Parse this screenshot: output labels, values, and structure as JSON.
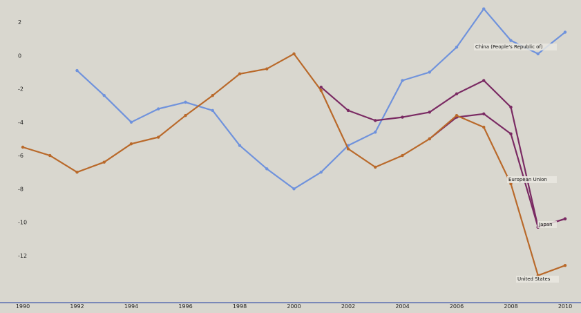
{
  "chart_data": {
    "type": "line",
    "xlim": [
      1990,
      2010
    ],
    "ylim": [
      -14,
      3
    ],
    "x_ticks": [
      1990,
      1992,
      1994,
      1996,
      1998,
      2000,
      2002,
      2004,
      2006,
      2008,
      2010
    ],
    "y_ticks": [
      2,
      0,
      -2,
      -4,
      -6,
      -8,
      -10,
      -12
    ],
    "grid": false,
    "legend": "inline-right",
    "series": [
      {
        "name": "China (People's Republic of)",
        "color": "#6f92dc",
        "points": [
          [
            1992,
            -0.9
          ],
          [
            1993,
            -2.4
          ],
          [
            1994,
            -4.0
          ],
          [
            1995,
            -3.2
          ],
          [
            1996,
            -2.8
          ],
          [
            1997,
            -3.3
          ],
          [
            1998,
            -5.4
          ],
          [
            1999,
            -6.8
          ],
          [
            2000,
            -8.0
          ],
          [
            2001,
            -7.0
          ],
          [
            2002,
            -5.4
          ],
          [
            2003,
            -4.6
          ],
          [
            2004,
            -1.5
          ],
          [
            2005,
            -1.0
          ],
          [
            2006,
            0.5
          ],
          [
            2007,
            2.8
          ],
          [
            2008,
            0.9
          ],
          [
            2009,
            0.1
          ],
          [
            2010,
            1.4
          ]
        ]
      },
      {
        "name": "European Union",
        "color": "#7a2a63",
        "points": [
          [
            2001,
            -1.9
          ],
          [
            2002,
            -3.3
          ],
          [
            2003,
            -3.9
          ],
          [
            2004,
            -3.7
          ],
          [
            2005,
            -3.4
          ],
          [
            2006,
            -2.3
          ],
          [
            2007,
            -1.5
          ],
          [
            2008,
            -3.1
          ],
          [
            2009,
            -10.3
          ],
          [
            2010,
            -9.8
          ]
        ]
      },
      {
        "name": "Japan",
        "color": "#7a2a63",
        "points": [
          [
            2005,
            -5.0
          ],
          [
            2006,
            -3.7
          ],
          [
            2007,
            -3.5
          ],
          [
            2008,
            -4.7
          ],
          [
            2009,
            -10.3
          ],
          [
            2010,
            -9.8
          ]
        ]
      },
      {
        "name": "United States",
        "color": "#b9692a",
        "points": [
          [
            1990,
            -5.5
          ],
          [
            1991,
            -6.0
          ],
          [
            1992,
            -7.0
          ],
          [
            1993,
            -6.4
          ],
          [
            1994,
            -5.3
          ],
          [
            1995,
            -4.9
          ],
          [
            1996,
            -3.6
          ],
          [
            1997,
            -2.4
          ],
          [
            1998,
            -1.1
          ],
          [
            1999,
            -0.8
          ],
          [
            2000,
            0.1
          ],
          [
            2001,
            -2.1
          ],
          [
            2002,
            -5.6
          ],
          [
            2003,
            -6.7
          ],
          [
            2004,
            -6.0
          ],
          [
            2005,
            -5.0
          ],
          [
            2006,
            -3.6
          ],
          [
            2007,
            -4.3
          ],
          [
            2008,
            -7.7
          ],
          [
            2009,
            -13.2
          ],
          [
            2010,
            -12.6
          ]
        ]
      }
    ],
    "series_labels": {
      "China (People's Republic of)": "China (People's Republic of)",
      "European Union": "European Union",
      "Japan": "Japan",
      "United States": "United States"
    }
  }
}
